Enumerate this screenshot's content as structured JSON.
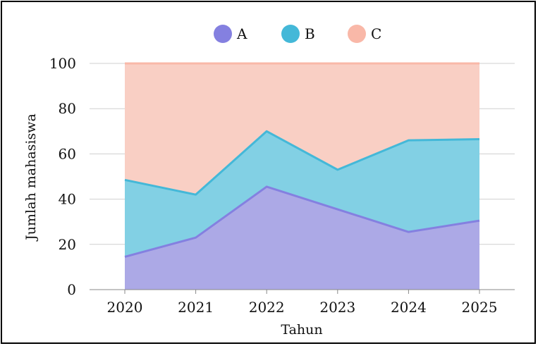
{
  "chart_data": {
    "type": "area",
    "stacked": true,
    "normalized": true,
    "categories": [
      "2020",
      "2021",
      "2022",
      "2023",
      "2024",
      "2025"
    ],
    "series": [
      {
        "name": "A",
        "color": "#8480e0",
        "fill": "#aca9e6",
        "values": [
          14.5,
          23,
          45.5,
          35.5,
          25.5,
          30.5
        ]
      },
      {
        "name": "B",
        "color": "#44b8d8",
        "fill": "#82d0e4",
        "values": [
          34,
          19,
          24.5,
          17.5,
          40.5,
          36
        ]
      },
      {
        "name": "C",
        "color": "#f9b8a8",
        "fill": "#f9cfc4",
        "values": [
          51.5,
          58,
          30,
          47,
          34,
          33.5
        ]
      }
    ],
    "title": "",
    "xlabel": "Tahun",
    "ylabel": "Jumlah mahasiswa",
    "ylim": [
      0,
      100
    ],
    "yticks": [
      "0",
      "20",
      "40",
      "60",
      "80",
      "100"
    ],
    "grid": true,
    "legend_position": "top"
  }
}
